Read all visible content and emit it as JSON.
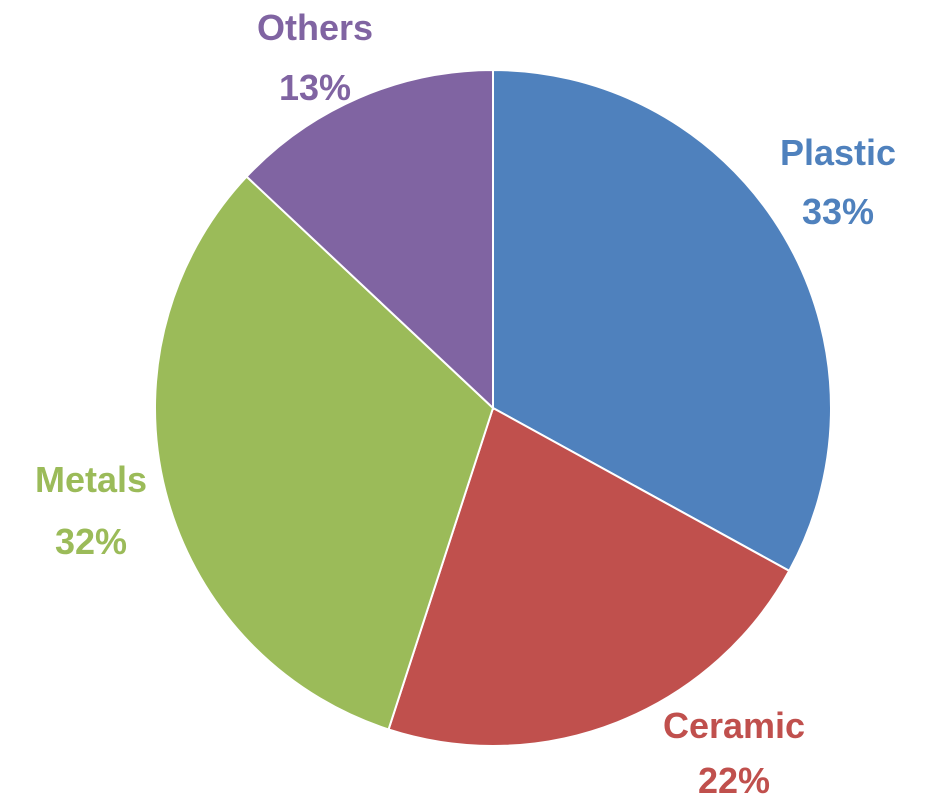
{
  "chart_data": {
    "type": "pie",
    "title": "",
    "start_angle_deg": 0,
    "direction": "clockwise",
    "slices": [
      {
        "label": "Plastic",
        "percent_label": "33%",
        "value": 33,
        "color": "#4F81BD"
      },
      {
        "label": "Ceramic",
        "percent_label": "22%",
        "value": 22,
        "color": "#C0504D"
      },
      {
        "label": "Metals",
        "percent_label": "32%",
        "value": 32,
        "color": "#9BBB59"
      },
      {
        "label": "Others",
        "percent_label": "13%",
        "value": 13,
        "color": "#8064A2"
      }
    ]
  }
}
